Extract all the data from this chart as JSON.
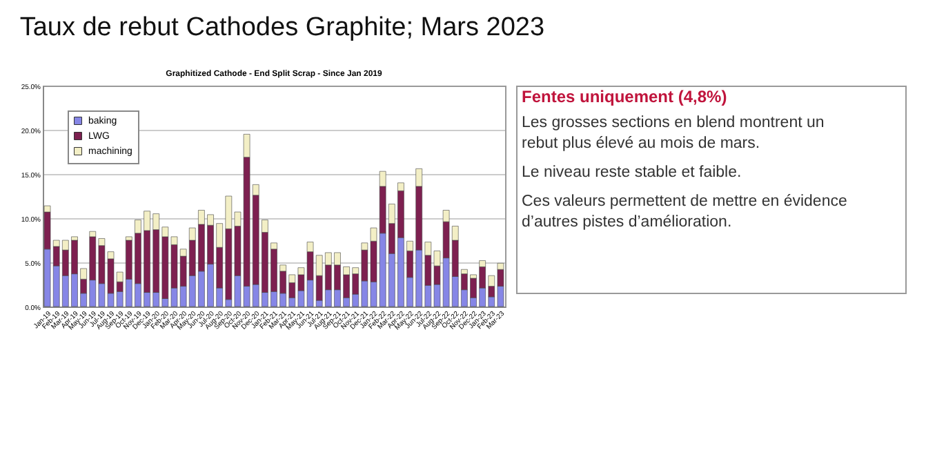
{
  "chart_data": [
    {
      "type": "bar",
      "title": "Taux de rebut Cathodes Graphite; Mars 2023",
      "subtitle": "Graphitized Cathode - End Split Scrap - Since Jan 2019",
      "stacked": true,
      "categories": [
        "Jan-19",
        "Feb-19",
        "Mar-19",
        "Apr-19",
        "May-19",
        "Jun-19",
        "Jul-19",
        "Aug-19",
        "Sep-19",
        "Oct-19",
        "Nov-19",
        "Dec-19",
        "Jan-20",
        "Feb-20",
        "Mar-20",
        "Apr-20",
        "May-20",
        "Jun-20",
        "Jul-20",
        "Aug-20",
        "Sep-20",
        "Oct-20",
        "Nov-20",
        "Dec-20",
        "Jan-21",
        "Feb-21",
        "Mar-21",
        "Apr-21",
        "May-21",
        "Jun-21",
        "Jul-21",
        "Aug-21",
        "Sep-21",
        "Oct-21",
        "Nov-21",
        "Dec-21",
        "Jan-22",
        "Feb-22",
        "Mar-22",
        "Apr-22",
        "May-22",
        "Jun-22",
        "Jul-22",
        "Aug-22",
        "Sep-22",
        "Oct-22",
        "Nov-22",
        "Dec-22",
        "Jan-23",
        "Feb-23",
        "Mar-23"
      ],
      "series": [
        {
          "name": "baking",
          "color": "#8686e6",
          "values": [
            6.5,
            4.6,
            3.5,
            3.7,
            1.5,
            3.0,
            2.6,
            1.5,
            1.7,
            3.1,
            2.6,
            1.6,
            1.6,
            0.9,
            2.1,
            2.3,
            3.5,
            4.0,
            4.8,
            2.1,
            0.8,
            3.5,
            2.3,
            2.5,
            1.6,
            1.7,
            1.5,
            1.0,
            1.8,
            3.0,
            0.7,
            1.9,
            1.9,
            1.0,
            1.4,
            2.9,
            2.8,
            8.3,
            6.0,
            7.8,
            3.3,
            6.4,
            2.4,
            2.5,
            5.5,
            3.4,
            1.9,
            1.0,
            2.1,
            1.1,
            2.3
          ]
        },
        {
          "name": "LWG",
          "color": "#7d2050",
          "values": [
            4.2,
            2.2,
            2.9,
            3.8,
            1.6,
            4.9,
            4.3,
            3.9,
            1.1,
            4.4,
            5.7,
            7.0,
            7.1,
            7.0,
            4.9,
            3.4,
            4.0,
            5.3,
            4.4,
            4.6,
            8.0,
            5.6,
            14.6,
            10.1,
            6.8,
            4.8,
            2.5,
            1.7,
            1.8,
            3.2,
            2.8,
            2.8,
            2.8,
            2.6,
            2.3,
            3.5,
            4.6,
            5.3,
            3.4,
            5.3,
            3.0,
            7.2,
            3.4,
            2.1,
            4.1,
            4.1,
            1.8,
            2.2,
            2.4,
            1.2,
            1.9
          ]
        },
        {
          "name": "machining",
          "color": "#f3efc6",
          "values": [
            0.7,
            0.7,
            1.1,
            0.4,
            1.2,
            0.6,
            0.8,
            0.8,
            1.1,
            0.4,
            1.5,
            2.2,
            1.8,
            1.1,
            0.9,
            0.8,
            1.4,
            1.6,
            1.2,
            2.7,
            3.7,
            1.6,
            2.6,
            1.2,
            1.4,
            0.7,
            0.7,
            0.9,
            0.8,
            1.1,
            2.3,
            1.4,
            1.4,
            0.9,
            0.7,
            0.8,
            1.5,
            1.7,
            2.2,
            0.9,
            1.1,
            2.0,
            1.5,
            1.7,
            1.3,
            1.6,
            0.5,
            0.4,
            0.7,
            1.2,
            0.7
          ]
        }
      ],
      "ylim": [
        0,
        25
      ],
      "yticks": [
        {
          "value": 0,
          "label": "0.0%"
        },
        {
          "value": 5,
          "label": "5.0%"
        },
        {
          "value": 10,
          "label": "10.0%"
        },
        {
          "value": 15,
          "label": "15.0%"
        },
        {
          "value": 20,
          "label": "20.0%"
        },
        {
          "value": 25,
          "label": "25.0%"
        }
      ],
      "grid": "y",
      "legend": "top left"
    },
    {
      "type": "other",
      "title": "Fentes uniquement (4,8%)",
      "annotations": [
        "Les grosses sections en blend montrent un rebut plus élevé au mois de mars.",
        "Le niveau reste stable et faible.",
        "Ces valeurs permettent de mettre en évidence d’autres pistes d’amélioration."
      ]
    }
  ]
}
